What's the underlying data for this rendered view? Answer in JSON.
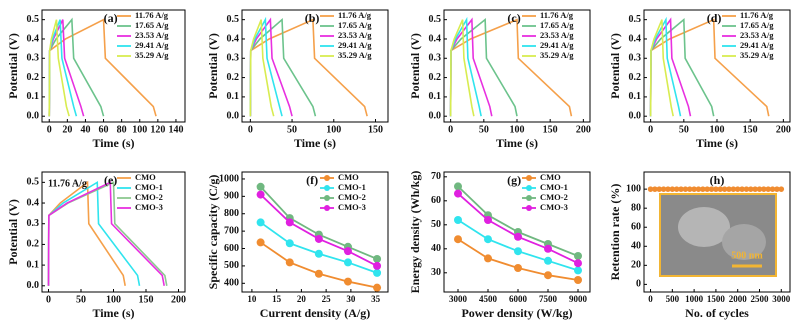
{
  "chart_data": [
    {
      "type": "line",
      "panel_label": "(a)",
      "x_label": "Time (s)",
      "y_label": "Potential (V)",
      "legend": "upper right",
      "xlim": [
        -8,
        150
      ],
      "xticks": [
        0,
        20,
        40,
        60,
        80,
        100,
        120,
        140
      ],
      "ylim": [
        -0.03,
        0.55
      ],
      "yticks": [
        {
          "value": 0,
          "label": "0.0"
        },
        {
          "value": 0.1,
          "label": "0.1"
        },
        {
          "value": 0.2,
          "label": "0.2"
        },
        {
          "value": 0.3,
          "label": "0.3"
        },
        {
          "value": 0.4,
          "label": "0.4"
        },
        {
          "value": 0.5,
          "label": "0.5"
        }
      ],
      "series": [
        {
          "name": "11.76 A/g",
          "color": "#f5a04a",
          "x": [
            0,
            0.5,
            18,
            60,
            62,
            115,
            118
          ],
          "values": [
            0,
            0.34,
            0.4,
            0.5,
            0.3,
            0.05,
            0
          ]
        },
        {
          "name": "17.65 A/g",
          "color": "#6cc38c",
          "x": [
            0,
            0.5,
            7.5,
            25,
            27,
            57,
            60
          ],
          "values": [
            0,
            0.34,
            0.4,
            0.5,
            0.3,
            0.05,
            0
          ]
        },
        {
          "name": "23.53 A/g",
          "color": "#e830e0",
          "x": [
            0,
            0.5,
            4.5,
            15,
            17,
            35,
            38
          ],
          "values": [
            0,
            0.34,
            0.4,
            0.5,
            0.3,
            0.05,
            0
          ]
        },
        {
          "name": "29.41 A/g",
          "color": "#30e4ee",
          "x": [
            0,
            0.5,
            3.6,
            12,
            14,
            27,
            30
          ],
          "values": [
            0,
            0.34,
            0.4,
            0.5,
            0.3,
            0.05,
            0
          ]
        },
        {
          "name": "35.29 A/g",
          "color": "#d8ec50",
          "x": [
            0,
            0.5,
            2.4,
            8,
            10,
            19,
            22
          ],
          "values": [
            0,
            0.34,
            0.4,
            0.5,
            0.3,
            0.05,
            0
          ]
        }
      ]
    },
    {
      "type": "line",
      "panel_label": "(b)",
      "x_label": "Time (s)",
      "y_label": "Potential (V)",
      "legend": "upper right",
      "xlim": [
        -10,
        165
      ],
      "xticks": [
        0,
        50,
        100,
        150
      ],
      "ylim": [
        -0.03,
        0.55
      ],
      "yticks": [
        {
          "value": 0,
          "label": "0.0"
        },
        {
          "value": 0.1,
          "label": "0.1"
        },
        {
          "value": 0.2,
          "label": "0.2"
        },
        {
          "value": 0.3,
          "label": "0.3"
        },
        {
          "value": 0.4,
          "label": "0.4"
        },
        {
          "value": 0.5,
          "label": "0.5"
        }
      ],
      "series": [
        {
          "name": "11.76 A/g",
          "color": "#f5a04a",
          "x": [
            0,
            0.5,
            22.5,
            75,
            77,
            137,
            140
          ],
          "values": [
            0,
            0.34,
            0.4,
            0.5,
            0.3,
            0.05,
            0
          ]
        },
        {
          "name": "17.65 A/g",
          "color": "#6cc38c",
          "x": [
            0,
            0.5,
            11.4,
            38,
            40,
            75,
            78
          ],
          "values": [
            0,
            0.34,
            0.4,
            0.5,
            0.3,
            0.05,
            0
          ]
        },
        {
          "name": "23.53 A/g",
          "color": "#e830e0",
          "x": [
            0,
            0.5,
            7.2,
            24,
            26,
            47,
            50
          ],
          "values": [
            0,
            0.34,
            0.4,
            0.5,
            0.3,
            0.05,
            0
          ]
        },
        {
          "name": "29.41 A/g",
          "color": "#30e4ee",
          "x": [
            0,
            0.5,
            5.4,
            18,
            20,
            35,
            38
          ],
          "values": [
            0,
            0.34,
            0.4,
            0.5,
            0.3,
            0.05,
            0
          ]
        },
        {
          "name": "35.29 A/g",
          "color": "#d8ec50",
          "x": [
            0,
            0.5,
            3.9,
            13,
            15,
            25,
            28
          ],
          "values": [
            0,
            0.34,
            0.4,
            0.5,
            0.3,
            0.05,
            0
          ]
        }
      ]
    },
    {
      "type": "line",
      "panel_label": "(c)",
      "x_label": "Time (s)",
      "y_label": "Potential (V)",
      "legend": "upper right",
      "xlim": [
        -10,
        210
      ],
      "xticks": [
        0,
        50,
        100,
        150,
        200
      ],
      "ylim": [
        -0.03,
        0.55
      ],
      "yticks": [
        {
          "value": 0,
          "label": "0.0"
        },
        {
          "value": 0.1,
          "label": "0.1"
        },
        {
          "value": 0.2,
          "label": "0.2"
        },
        {
          "value": 0.3,
          "label": "0.3"
        },
        {
          "value": 0.4,
          "label": "0.4"
        },
        {
          "value": 0.5,
          "label": "0.5"
        }
      ],
      "series": [
        {
          "name": "11.76 A/g",
          "color": "#f5a04a",
          "x": [
            0,
            0.5,
            30,
            100,
            102,
            179,
            182
          ],
          "values": [
            0,
            0.34,
            0.4,
            0.5,
            0.3,
            0.05,
            0
          ]
        },
        {
          "name": "17.65 A/g",
          "color": "#6cc38c",
          "x": [
            0,
            0.5,
            15.6,
            52,
            54,
            97,
            100
          ],
          "values": [
            0,
            0.34,
            0.4,
            0.5,
            0.3,
            0.05,
            0
          ]
        },
        {
          "name": "23.53 A/g",
          "color": "#e830e0",
          "x": [
            0,
            0.5,
            9.6,
            32,
            34,
            59,
            62
          ],
          "values": [
            0,
            0.34,
            0.4,
            0.5,
            0.3,
            0.05,
            0
          ]
        },
        {
          "name": "29.41 A/g",
          "color": "#30e4ee",
          "x": [
            0,
            0.5,
            7.2,
            24,
            26,
            43,
            46
          ],
          "values": [
            0,
            0.34,
            0.4,
            0.5,
            0.3,
            0.05,
            0
          ]
        },
        {
          "name": "35.29 A/g",
          "color": "#d8ec50",
          "x": [
            0,
            0.5,
            5.4,
            18,
            20,
            32,
            35
          ],
          "values": [
            0,
            0.34,
            0.4,
            0.5,
            0.3,
            0.05,
            0
          ]
        }
      ]
    },
    {
      "type": "line",
      "panel_label": "(d)",
      "x_label": "Time (s)",
      "y_label": "Potential (V)",
      "legend": "upper right",
      "xlim": [
        -10,
        210
      ],
      "xticks": [
        0,
        50,
        100,
        150,
        200
      ],
      "ylim": [
        -0.03,
        0.55
      ],
      "yticks": [
        {
          "value": 0,
          "label": "0.0"
        },
        {
          "value": 0.1,
          "label": "0.1"
        },
        {
          "value": 0.2,
          "label": "0.2"
        },
        {
          "value": 0.3,
          "label": "0.3"
        },
        {
          "value": 0.4,
          "label": "0.4"
        },
        {
          "value": 0.5,
          "label": "0.5"
        }
      ],
      "series": [
        {
          "name": "11.76 A/g",
          "color": "#f5a04a",
          "x": [
            0,
            0.5,
            28.5,
            95,
            97,
            175,
            178
          ],
          "values": [
            0,
            0.34,
            0.4,
            0.5,
            0.3,
            0.05,
            0
          ]
        },
        {
          "name": "17.65 A/g",
          "color": "#6cc38c",
          "x": [
            0,
            0.5,
            15,
            50,
            52,
            92,
            95
          ],
          "values": [
            0,
            0.34,
            0.4,
            0.5,
            0.3,
            0.05,
            0
          ]
        },
        {
          "name": "23.53 A/g",
          "color": "#e830e0",
          "x": [
            0,
            0.5,
            9,
            30,
            32,
            57,
            60
          ],
          "values": [
            0,
            0.34,
            0.4,
            0.5,
            0.3,
            0.05,
            0
          ]
        },
        {
          "name": "29.41 A/g",
          "color": "#30e4ee",
          "x": [
            0,
            0.5,
            6.9,
            23,
            25,
            42,
            45
          ],
          "values": [
            0,
            0.34,
            0.4,
            0.5,
            0.3,
            0.05,
            0
          ]
        },
        {
          "name": "35.29 A/g",
          "color": "#d8ec50",
          "x": [
            0,
            0.5,
            5.1,
            17,
            19,
            31,
            34
          ],
          "values": [
            0,
            0.34,
            0.4,
            0.5,
            0.3,
            0.05,
            0
          ]
        }
      ]
    },
    {
      "type": "line",
      "panel_label": "(e)",
      "x_label": "Time (s)",
      "y_label": "Potential (V)",
      "legend": "upper right",
      "annotation": "11.76 A/g",
      "xlim": [
        -10,
        210
      ],
      "xticks": [
        0,
        50,
        100,
        150,
        200
      ],
      "ylim": [
        -0.03,
        0.55
      ],
      "yticks": [
        {
          "value": 0,
          "label": "0.0"
        },
        {
          "value": 0.1,
          "label": "0.1"
        },
        {
          "value": 0.2,
          "label": "0.2"
        },
        {
          "value": 0.3,
          "label": "0.3"
        },
        {
          "value": 0.4,
          "label": "0.4"
        },
        {
          "value": 0.5,
          "label": "0.5"
        }
      ],
      "series": [
        {
          "name": "CMO",
          "color": "#f5a04a",
          "x": [
            0,
            0.5,
            18,
            60,
            62,
            115,
            118
          ],
          "values": [
            0,
            0.34,
            0.4,
            0.5,
            0.3,
            0.05,
            0
          ]
        },
        {
          "name": "CMO-1",
          "color": "#30e4ee",
          "x": [
            0,
            0.5,
            22.5,
            75,
            77,
            137,
            140
          ],
          "values": [
            0,
            0.34,
            0.4,
            0.5,
            0.3,
            0.05,
            0
          ]
        },
        {
          "name": "CMO-2",
          "color": "#8cc890",
          "x": [
            0,
            0.5,
            30,
            100,
            102,
            179,
            182
          ],
          "values": [
            0,
            0.34,
            0.4,
            0.5,
            0.3,
            0.05,
            0
          ]
        },
        {
          "name": "CMO-3",
          "color": "#e830e0",
          "x": [
            0,
            0.5,
            28.5,
            95,
            97,
            175,
            178
          ],
          "values": [
            0,
            0.34,
            0.4,
            0.5,
            0.3,
            0.05,
            0
          ]
        }
      ]
    },
    {
      "type": "line",
      "markers": true,
      "panel_label": "(f)",
      "x_label": "Current density (A/g)",
      "y_label": "Specific capacity (C/g)",
      "legend": "upper right",
      "x": [
        11.76,
        17.65,
        23.53,
        29.41,
        35.29
      ],
      "xlim": [
        8,
        37.5
      ],
      "xticks": [
        10,
        15,
        20,
        25,
        30,
        35
      ],
      "ylim": [
        350,
        1040
      ],
      "yticks": [
        400,
        500,
        600,
        700,
        800,
        900,
        1000
      ],
      "series": [
        {
          "name": "CMO",
          "color": "#f08c30",
          "values": [
            635,
            520,
            455,
            410,
            375
          ]
        },
        {
          "name": "CMO-1",
          "color": "#30e4ee",
          "values": [
            750,
            630,
            570,
            520,
            460
          ]
        },
        {
          "name": "CMO-2",
          "color": "#70b880",
          "values": [
            955,
            775,
            680,
            610,
            540
          ]
        },
        {
          "name": "CMO-3",
          "color": "#e020e0",
          "values": [
            910,
            750,
            655,
            585,
            500
          ]
        }
      ]
    },
    {
      "type": "line",
      "markers": true,
      "panel_label": "(g)",
      "x_label": "Power density (W/kg)",
      "y_label": "Energy density (Wh/kg)",
      "legend": "upper right",
      "x": [
        3000,
        4500,
        6000,
        7500,
        9000
      ],
      "xlim": [
        2300,
        9600
      ],
      "xticks": [
        3000,
        4500,
        6000,
        7500,
        9000
      ],
      "ylim": [
        22,
        72
      ],
      "yticks": [
        30,
        40,
        50,
        60,
        70
      ],
      "series": [
        {
          "name": "CMO",
          "color": "#f08c30",
          "values": [
            44,
            36,
            32,
            29,
            27
          ]
        },
        {
          "name": "CMO-1",
          "color": "#30e4ee",
          "values": [
            52,
            44,
            39,
            35,
            31
          ]
        },
        {
          "name": "CMO-2",
          "color": "#70b880",
          "values": [
            66,
            54,
            47,
            42,
            37
          ]
        },
        {
          "name": "CMO-3",
          "color": "#e020e0",
          "values": [
            63,
            52,
            45,
            40,
            34
          ]
        }
      ]
    },
    {
      "type": "scatter",
      "panel_label": "(h)",
      "x_label": "No. of cycles",
      "y_label": "Retention rate (%)",
      "inset_label": "500 nm",
      "xlim": [
        -150,
        3200
      ],
      "xticks": [
        0,
        500,
        1000,
        1500,
        2000,
        2500,
        3000
      ],
      "ylim": [
        -8,
        118
      ],
      "yticks": [
        0,
        20,
        40,
        60,
        80,
        100
      ],
      "series": [
        {
          "color": "#f08c30",
          "x": [
            0,
            100,
            200,
            300,
            400,
            500,
            600,
            700,
            800,
            900,
            1000,
            1100,
            1200,
            1300,
            1400,
            1500,
            1600,
            1700,
            1800,
            1900,
            2000,
            2100,
            2200,
            2300,
            2400,
            2500,
            2600,
            2700,
            2800,
            2900,
            3000
          ],
          "values": [
            100,
            100,
            100,
            100,
            100,
            100,
            100,
            100,
            100,
            100,
            100,
            100,
            100,
            100,
            100,
            100,
            100,
            100,
            100,
            100,
            100,
            100,
            100,
            100,
            100,
            100,
            100,
            100,
            100,
            100,
            100
          ]
        }
      ]
    }
  ]
}
